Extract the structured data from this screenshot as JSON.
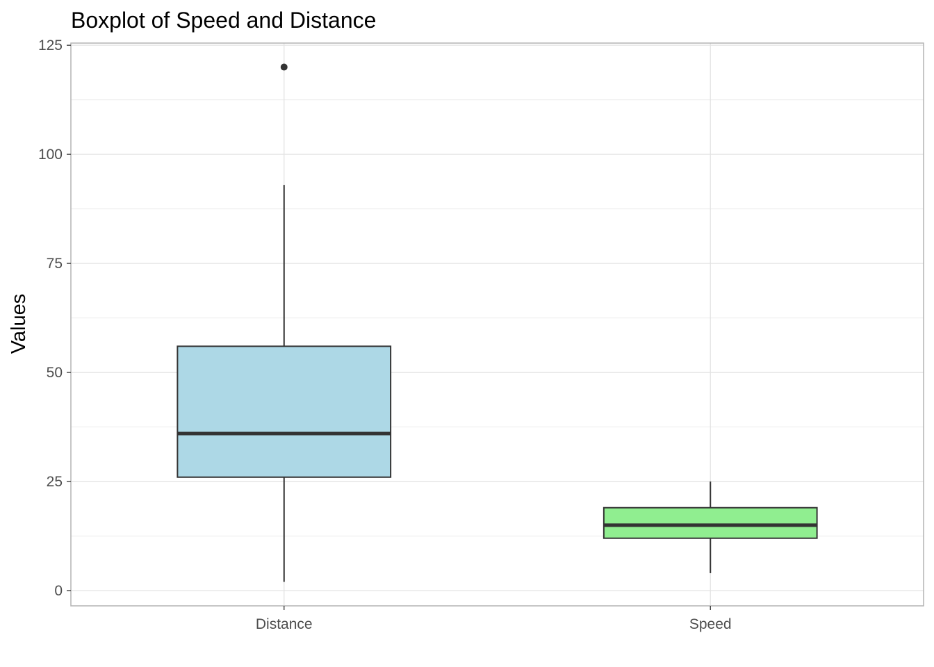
{
  "chart_data": {
    "type": "boxplot",
    "title": "Boxplot of Speed and Distance",
    "xlabel": "",
    "ylabel": "Values",
    "ylim": [
      -3.5,
      125.5
    ],
    "yticks": [
      0,
      25,
      50,
      75,
      100,
      125
    ],
    "grid": true,
    "legend": "none",
    "categories": [
      "Distance",
      "Speed"
    ],
    "boxes": [
      {
        "category": "Distance",
        "fill": "#add8e6",
        "whisker_low": 2,
        "q1": 26,
        "median": 36,
        "q3": 56,
        "whisker_high": 93,
        "outliers": [
          120
        ]
      },
      {
        "category": "Speed",
        "fill": "#90ee90",
        "whisker_low": 4,
        "q1": 12,
        "median": 15,
        "q3": 19,
        "whisker_high": 25,
        "outliers": []
      }
    ],
    "colors": {
      "box_outline": "#333333",
      "grid": "#e3e3e3",
      "panel_border": "#b3b3b3"
    }
  }
}
